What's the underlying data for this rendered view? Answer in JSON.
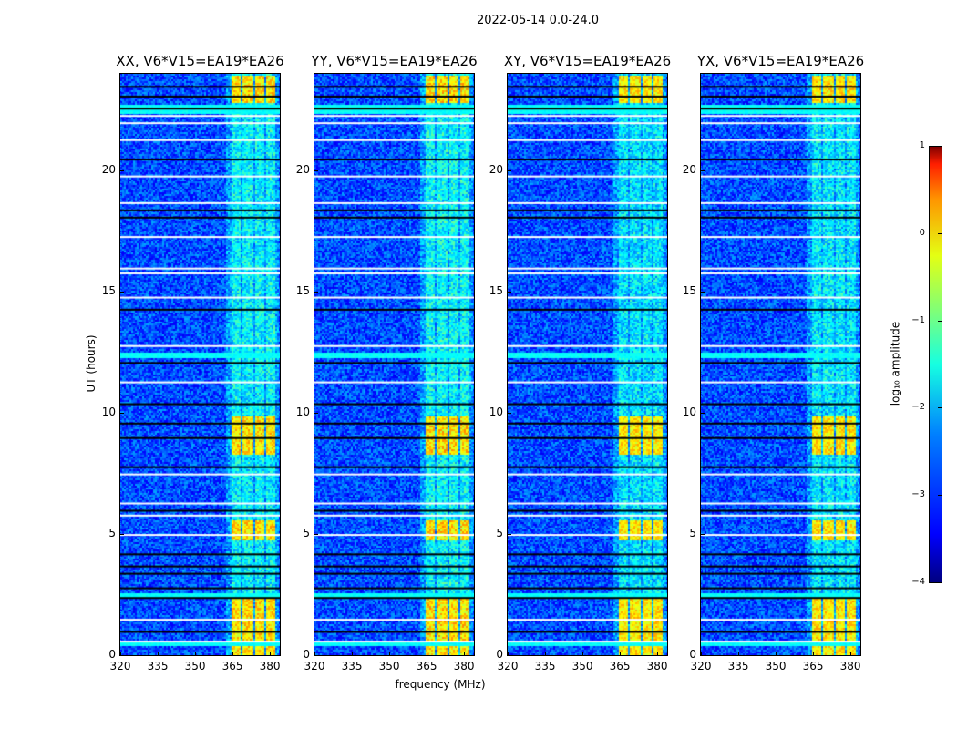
{
  "chart_data": {
    "type": "heatmap",
    "suptitle": "2022-05-14 0.0-24.0",
    "xlabel": "frequency (MHz)",
    "ylabel": "UT (hours)",
    "xlim": [
      320,
      384
    ],
    "ylim": [
      0,
      24
    ],
    "xticks": [
      "320",
      "335",
      "350",
      "365",
      "380"
    ],
    "xtick_values": [
      320,
      335,
      350,
      365,
      380
    ],
    "yticks": [
      "0",
      "5",
      "10",
      "15",
      "20"
    ],
    "ytick_values": [
      0,
      5,
      10,
      15,
      20
    ],
    "panels": [
      {
        "title": "XX, V6*V15=EA19*EA26",
        "rfi_level": 1.0
      },
      {
        "title": "YY, V6*V15=EA19*EA26",
        "rfi_level": 1.05
      },
      {
        "title": "XY, V6*V15=EA19*EA26",
        "rfi_level": 0.85
      },
      {
        "title": "YX, V6*V15=EA19*EA26",
        "rfi_level": 0.9
      }
    ],
    "background_log10_amplitude": -3.0,
    "rfi_channels_mhz": [
      [
        364,
        368
      ],
      [
        369,
        373
      ],
      [
        374,
        377.5
      ],
      [
        378.5,
        382
      ]
    ],
    "strong_rfi_hours": [
      [
        22.8,
        24
      ],
      [
        8.3,
        9.9
      ],
      [
        4.8,
        5.6
      ],
      [
        0,
        2.4
      ]
    ],
    "flagged_hours": [
      0.6,
      1.5,
      5.0,
      5.8,
      6.3,
      7.5,
      11.3,
      12.8,
      14.8,
      15.8,
      16.0,
      17.3,
      18.7,
      19.8,
      21.3,
      22.0,
      22.3
    ],
    "dropout_hours": [
      1.0,
      2.4,
      2.8,
      3.4,
      3.7,
      4.2,
      6.0,
      7.8,
      9.0,
      9.6,
      10.4,
      12.1,
      14.3,
      18.1,
      18.4,
      20.5,
      22.6,
      23.1,
      23.5
    ],
    "bright_band_hours": [
      [
        22.4,
        22.75
      ],
      [
        2.4,
        2.6
      ],
      [
        12.3,
        12.5
      ],
      [
        0.45,
        0.6
      ]
    ],
    "colorbar": {
      "label": "log₁₀ amplitude",
      "range": [
        -4,
        1
      ],
      "ticks": [
        "1",
        "0",
        "−1",
        "−2",
        "−3",
        "−4"
      ],
      "tick_values": [
        1,
        0,
        -1,
        -2,
        -3,
        -4
      ],
      "colormap": "jet"
    }
  }
}
